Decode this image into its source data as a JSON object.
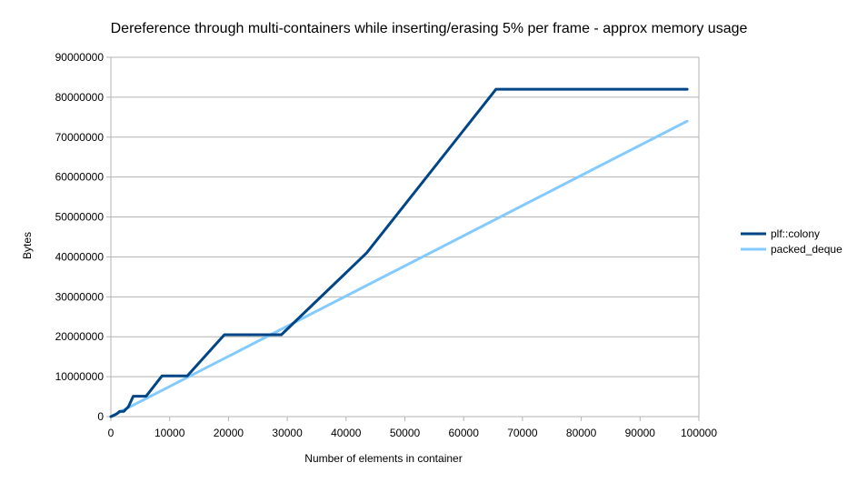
{
  "chart_data": {
    "type": "line",
    "title": "Dereference through multi-containers while inserting/erasing 5% per frame - approx memory usage",
    "xlabel": "Number of elements in container",
    "ylabel": "Bytes",
    "xlim": [
      0,
      100000
    ],
    "ylim": [
      0,
      90000000
    ],
    "x_ticks": [
      "0",
      "10000",
      "20000",
      "30000",
      "40000",
      "50000",
      "60000",
      "70000",
      "80000",
      "90000",
      "100000"
    ],
    "y_ticks": [
      "0",
      "10000000",
      "20000000",
      "30000000",
      "40000000",
      "50000000",
      "60000000",
      "70000000",
      "80000000",
      "90000000"
    ],
    "grid": "horizontal",
    "legend_position": "right",
    "series": [
      {
        "name": "plf::colony",
        "color": "#004586",
        "points": [
          [
            0,
            0
          ],
          [
            500,
            300000
          ],
          [
            1000,
            700000
          ],
          [
            1500,
            1300000
          ],
          [
            2200,
            1300000
          ],
          [
            3000,
            2500000
          ],
          [
            3800,
            5100000
          ],
          [
            6000,
            5100000
          ],
          [
            8700,
            10200000
          ],
          [
            13000,
            10200000
          ],
          [
            19300,
            20500000
          ],
          [
            29000,
            20500000
          ],
          [
            43500,
            41000000
          ],
          [
            65500,
            82000000
          ],
          [
            98000,
            82000000
          ]
        ]
      },
      {
        "name": "packed_deque",
        "color": "#83caff",
        "points": [
          [
            0,
            0
          ],
          [
            98000,
            74000000
          ]
        ]
      }
    ]
  }
}
